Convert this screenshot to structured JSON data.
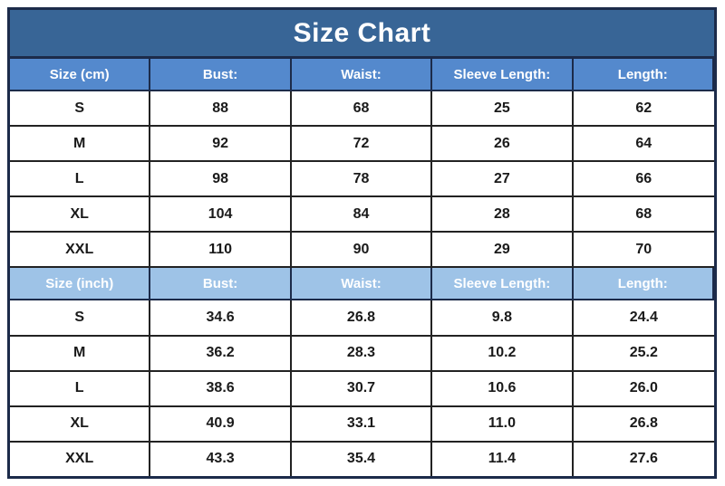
{
  "chart_data": {
    "type": "table",
    "title": "Size Chart",
    "colors": {
      "title_bg": "#386596",
      "cm_header_bg": "#5489CD",
      "inch_header_bg": "#9EC3E7",
      "header_text": "#FFFFFF",
      "body_text": "#1A1A1A",
      "outer_border": "#1C2B4A"
    },
    "sections": [
      {
        "id": "cm",
        "header": [
          "Size (cm)",
          "Bust:",
          "Waist:",
          "Sleeve Length:",
          "Length:"
        ],
        "rows": [
          [
            "S",
            "88",
            "68",
            "25",
            "62"
          ],
          [
            "M",
            "92",
            "72",
            "26",
            "64"
          ],
          [
            "L",
            "98",
            "78",
            "27",
            "66"
          ],
          [
            "XL",
            "104",
            "84",
            "28",
            "68"
          ],
          [
            "XXL",
            "110",
            "90",
            "29",
            "70"
          ]
        ]
      },
      {
        "id": "inch",
        "header": [
          "Size (inch)",
          "Bust:",
          "Waist:",
          "Sleeve Length:",
          "Length:"
        ],
        "rows": [
          [
            "S",
            "34.6",
            "26.8",
            "9.8",
            "24.4"
          ],
          [
            "M",
            "36.2",
            "28.3",
            "10.2",
            "25.2"
          ],
          [
            "L",
            "38.6",
            "30.7",
            "10.6",
            "26.0"
          ],
          [
            "XL",
            "40.9",
            "33.1",
            "11.0",
            "26.8"
          ],
          [
            "XXL",
            "43.3",
            "35.4",
            "11.4",
            "27.6"
          ]
        ]
      }
    ]
  }
}
